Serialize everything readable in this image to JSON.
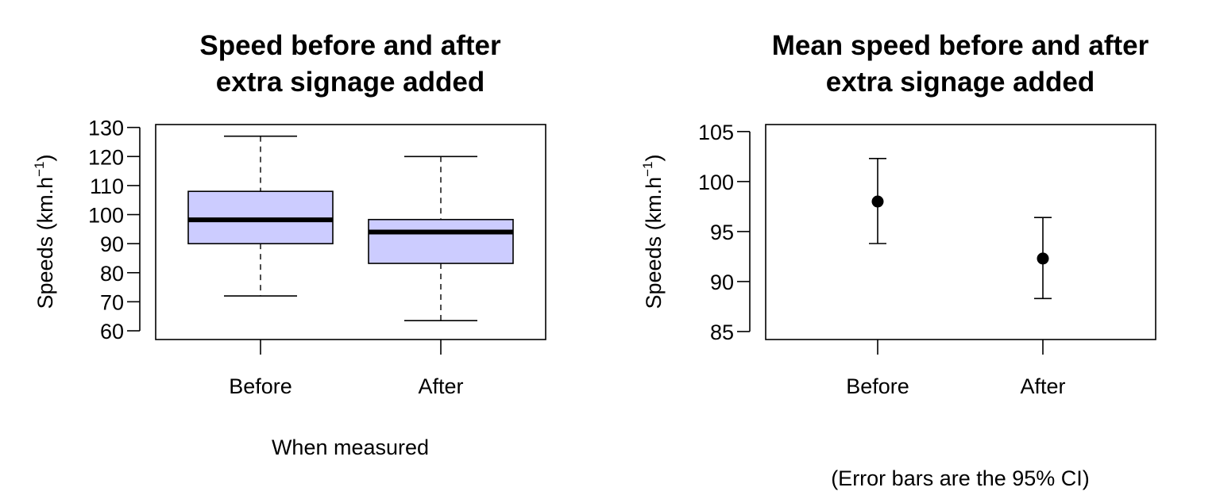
{
  "chart_data": [
    {
      "type": "box",
      "title_lines": [
        "Speed before and after",
        "extra signage added"
      ],
      "xlabel": "When measured",
      "ylabel_main": "Speeds (km.h",
      "ylabel_sup": "−1",
      "ylabel_end": ")",
      "categories": [
        "Before",
        "After"
      ],
      "ylim": [
        57,
        131
      ],
      "yticks": [
        60,
        70,
        80,
        90,
        100,
        110,
        120,
        130
      ],
      "box_fill": "#ccccff",
      "boxes": [
        {
          "name": "Before",
          "min": 72,
          "q1": 90,
          "median": 98.2,
          "q3": 108,
          "max": 127
        },
        {
          "name": "After",
          "min": 63.5,
          "q1": 83.2,
          "median": 94,
          "q3": 98.3,
          "max": 120
        }
      ]
    },
    {
      "type": "errorbar",
      "title_lines": [
        "Mean speed before and after",
        "extra signage added"
      ],
      "xlabel": "",
      "ylabel_main": "Speeds (km.h",
      "ylabel_sup": "−1",
      "ylabel_end": ")",
      "note": "(Error bars are the 95% CI)",
      "categories": [
        "Before",
        "After"
      ],
      "ylim": [
        84.2,
        105.7
      ],
      "yticks": [
        85,
        90,
        95,
        100,
        105
      ],
      "points": [
        {
          "name": "Before",
          "mean": 98,
          "lower": 93.8,
          "upper": 102.3
        },
        {
          "name": "After",
          "mean": 92.3,
          "lower": 88.3,
          "upper": 96.4
        }
      ]
    }
  ]
}
